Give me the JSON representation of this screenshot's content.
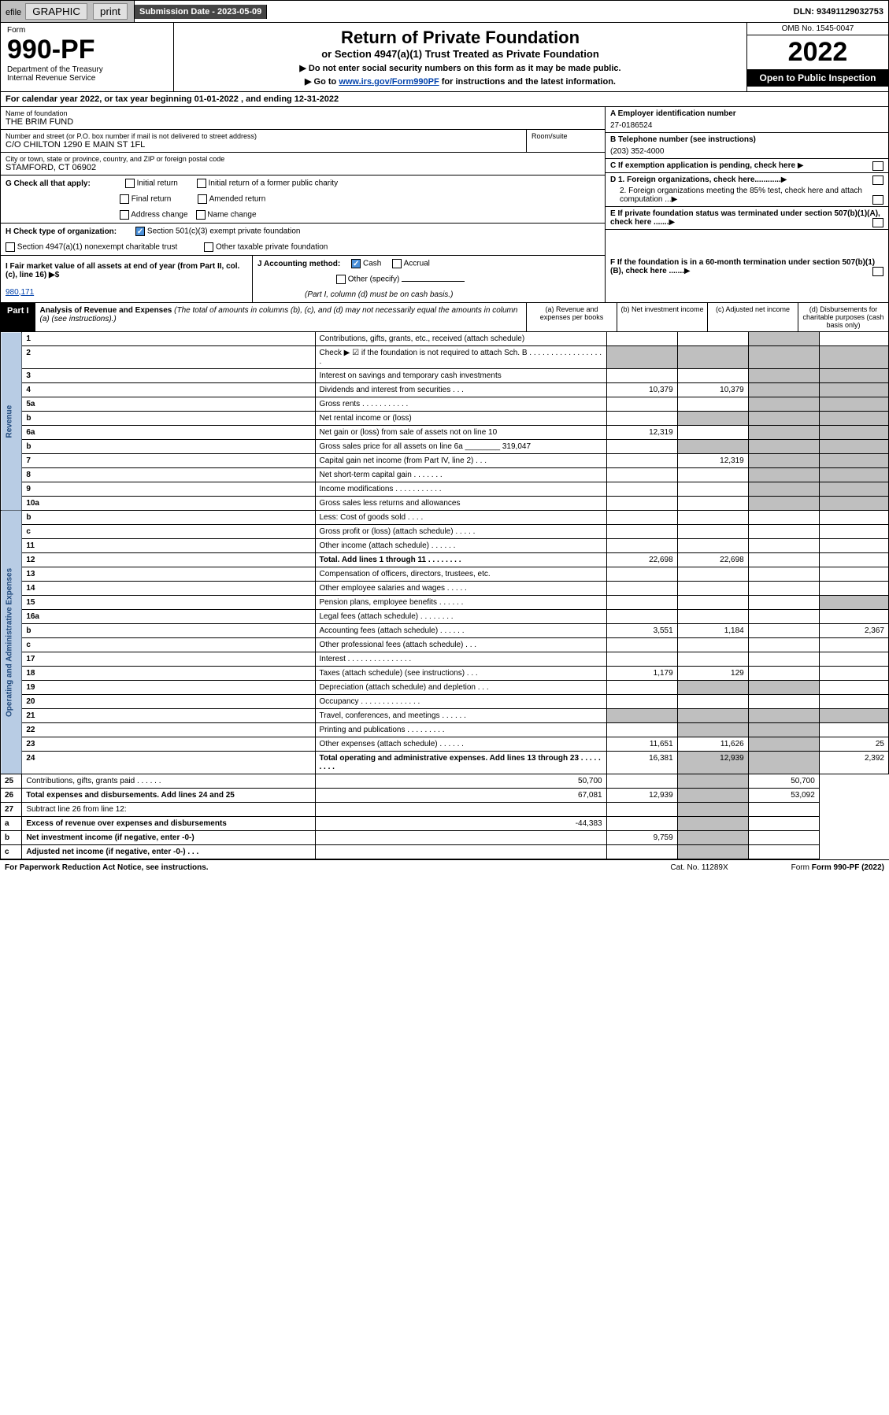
{
  "topbar": {
    "efile": "efile",
    "graphic": "GRAPHIC",
    "print": "print",
    "subdate_label": "Submission Date - 2023-05-09",
    "dln": "DLN: 93491129032753"
  },
  "header": {
    "form_word": "Form",
    "form_no": "990-PF",
    "dept1": "Department of the Treasury",
    "dept2": "Internal Revenue Service",
    "title": "Return of Private Foundation",
    "subtitle": "or Section 4947(a)(1) Trust Treated as Private Foundation",
    "instr1": "▶ Do not enter social security numbers on this form as it may be made public.",
    "instr2_pre": "▶ Go to ",
    "instr2_link": "www.irs.gov/Form990PF",
    "instr2_post": " for instructions and the latest information.",
    "omb": "OMB No. 1545-0047",
    "year": "2022",
    "open": "Open to Public Inspection"
  },
  "cal_year": "For calendar year 2022, or tax year beginning 01-01-2022            , and ending 12-31-2022",
  "org": {
    "name_label": "Name of foundation",
    "name": "THE BRIM FUND",
    "addr_label": "Number and street (or P.O. box number if mail is not delivered to street address)",
    "addr": "C/O CHILTON 1290 E MAIN ST 1FL",
    "room_label": "Room/suite",
    "city_label": "City or town, state or province, country, and ZIP or foreign postal code",
    "city": "STAMFORD, CT  06902",
    "ein_label": "A Employer identification number",
    "ein": "27-0186524",
    "phone_label": "B Telephone number (see instructions)",
    "phone": "(203) 352-4000",
    "c_label": "C If exemption application is pending, check here",
    "d1": "D 1. Foreign organizations, check here............",
    "d2": "2. Foreign organizations meeting the 85% test, check here and attach computation ...",
    "e_label": "E  If private foundation status was terminated under section 507(b)(1)(A), check here .......",
    "f_label": "F  If the foundation is in a 60-month termination under section 507(b)(1)(B), check here .......",
    "g_label": "G Check all that apply:",
    "g_opts": [
      "Initial return",
      "Initial return of a former public charity",
      "Final return",
      "Amended return",
      "Address change",
      "Name change"
    ],
    "h_label": "H Check type of organization:",
    "h_501c3": "Section 501(c)(3) exempt private foundation",
    "h_4947": "Section 4947(a)(1) nonexempt charitable trust",
    "h_other": "Other taxable private foundation",
    "i_label": "I Fair market value of all assets at end of year (from Part II, col. (c), line 16) ▶$",
    "i_val": "980,171",
    "j_label": "J Accounting method:",
    "j_cash": "Cash",
    "j_accrual": "Accrual",
    "j_other": "Other (specify)",
    "j_note": "(Part I, column (d) must be on cash basis.)"
  },
  "part1": {
    "label": "Part I",
    "title": "Analysis of Revenue and Expenses",
    "note": "(The total of amounts in columns (b), (c), and (d) may not necessarily equal the amounts in column (a) (see instructions).)",
    "col_a": "(a)   Revenue and expenses per books",
    "col_b": "(b)   Net investment income",
    "col_c": "(c)   Adjusted net income",
    "col_d": "(d)   Disbursements for charitable purposes (cash basis only)"
  },
  "side_labels": {
    "revenue": "Revenue",
    "expenses": "Operating and Administrative Expenses"
  },
  "lines": [
    {
      "n": "1",
      "d": "Contributions, gifts, grants, etc., received (attach schedule)"
    },
    {
      "n": "2",
      "d": "Check ▶ ☑ if the foundation is not required to attach Sch. B  . . . . . . . . . . . . . . . . . ."
    },
    {
      "n": "3",
      "d": "Interest on savings and temporary cash investments"
    },
    {
      "n": "4",
      "d": "Dividends and interest from securities  . . .",
      "a": "10,379",
      "b": "10,379"
    },
    {
      "n": "5a",
      "d": "Gross rents  . . . . . . . . . . ."
    },
    {
      "n": "b",
      "d": "Net rental income or (loss)"
    },
    {
      "n": "6a",
      "d": "Net gain or (loss) from sale of assets not on line 10",
      "a": "12,319"
    },
    {
      "n": "b",
      "d": "Gross sales price for all assets on line 6a ________ 319,047"
    },
    {
      "n": "7",
      "d": "Capital gain net income (from Part IV, line 2)  . . .",
      "b": "12,319"
    },
    {
      "n": "8",
      "d": "Net short-term capital gain  . . . . . . ."
    },
    {
      "n": "9",
      "d": "Income modifications . . . . . . . . . . ."
    },
    {
      "n": "10a",
      "d": "Gross sales less returns and allowances"
    },
    {
      "n": "b",
      "d": "Less: Cost of goods sold  . . . ."
    },
    {
      "n": "c",
      "d": "Gross profit or (loss) (attach schedule)  . . . . ."
    },
    {
      "n": "11",
      "d": "Other income (attach schedule)  . . . . . ."
    },
    {
      "n": "12",
      "d": "Total. Add lines 1 through 11 . . . . . . . .",
      "a": "22,698",
      "b": "22,698",
      "bold": true
    },
    {
      "n": "13",
      "d": "Compensation of officers, directors, trustees, etc."
    },
    {
      "n": "14",
      "d": "Other employee salaries and wages  . . . . ."
    },
    {
      "n": "15",
      "d": "Pension plans, employee benefits . . . . . ."
    },
    {
      "n": "16a",
      "d": "Legal fees (attach schedule) . . . . . . . ."
    },
    {
      "n": "b",
      "d": "Accounting fees (attach schedule) . . . . . .",
      "a": "3,551",
      "b": "1,184",
      "dd": "2,367"
    },
    {
      "n": "c",
      "d": "Other professional fees (attach schedule)  . . ."
    },
    {
      "n": "17",
      "d": "Interest . . . . . . . . . . . . . . ."
    },
    {
      "n": "18",
      "d": "Taxes (attach schedule) (see instructions)  . . .",
      "a": "1,179",
      "b": "129"
    },
    {
      "n": "19",
      "d": "Depreciation (attach schedule) and depletion  . . ."
    },
    {
      "n": "20",
      "d": "Occupancy . . . . . . . . . . . . . ."
    },
    {
      "n": "21",
      "d": "Travel, conferences, and meetings . . . . . ."
    },
    {
      "n": "22",
      "d": "Printing and publications . . . . . . . . ."
    },
    {
      "n": "23",
      "d": "Other expenses (attach schedule) . . . . . .",
      "a": "11,651",
      "b": "11,626",
      "dd": "25"
    },
    {
      "n": "24",
      "d": "Total operating and administrative expenses. Add lines 13 through 23  . . . . . . . . .",
      "a": "16,381",
      "b": "12,939",
      "dd": "2,392",
      "bold": true
    },
    {
      "n": "25",
      "d": "Contributions, gifts, grants paid  . . . . . .",
      "a": "50,700",
      "dd": "50,700"
    },
    {
      "n": "26",
      "d": "Total expenses and disbursements. Add lines 24 and 25",
      "a": "67,081",
      "b": "12,939",
      "dd": "53,092",
      "bold": true
    },
    {
      "n": "27",
      "d": "Subtract line 26 from line 12:"
    },
    {
      "n": "a",
      "d": "Excess of revenue over expenses and disbursements",
      "a": "-44,383",
      "bold": true
    },
    {
      "n": "b",
      "d": "Net investment income (if negative, enter -0-)",
      "b": "9,759",
      "bold": true
    },
    {
      "n": "c",
      "d": "Adjusted net income (if negative, enter -0-)  . . .",
      "bold": true
    }
  ],
  "shading": {
    "2": [
      "a",
      "b",
      "c",
      "d"
    ],
    "b_5": [
      "b",
      "c",
      "d"
    ],
    "b_6": [
      "b",
      "c",
      "d"
    ],
    "10a": [
      "b",
      "c",
      "d"
    ],
    "b_10": [
      "b",
      "c",
      "d"
    ],
    "6a": [
      "d"
    ],
    "7": [
      "a",
      "d"
    ],
    "8": [
      "a",
      "b",
      "d"
    ],
    "9": [
      "a",
      "b",
      "d"
    ],
    "12": [
      "d"
    ],
    "19": [
      "d"
    ],
    "25": [
      "b",
      "c"
    ],
    "27": [
      "a",
      "b",
      "c",
      "d"
    ],
    "a_27": [
      "b",
      "c",
      "d"
    ],
    "b_27": [
      "a",
      "c",
      "d"
    ],
    "c_27": [
      "a",
      "b",
      "d"
    ]
  },
  "footer": {
    "left": "For Paperwork Reduction Act Notice, see instructions.",
    "cat": "Cat. No. 11289X",
    "form": "Form 990-PF (2022)"
  }
}
